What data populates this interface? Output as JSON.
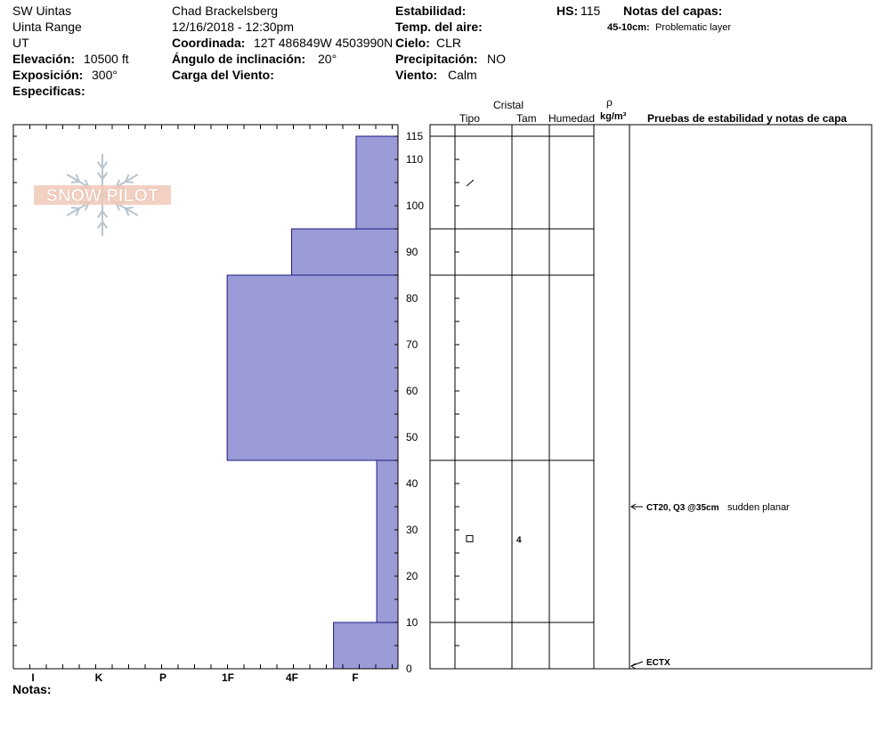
{
  "header": {
    "location": "SW Uintas",
    "range": "Uinta Range",
    "state": "UT",
    "elevation_label": "Elevación:",
    "elevation_value": "10500 ft",
    "aspect_label": "Exposición:",
    "aspect_value": "300°",
    "specifics_label": "Especificas:",
    "observer": "Chad Brackelsberg",
    "datetime": "12/16/2018 - 12:30pm",
    "coord_label": "Coordinada:",
    "coord_value": "12T 486849W 4503990N",
    "slope_label": "Ángulo de inclinación:",
    "slope_value": "20°",
    "wind_load_label": "Carga del Viento:",
    "stability_label": "Estabilidad:",
    "air_temp_label": "Temp. del aire:",
    "sky_label": "Cielo:",
    "sky_value": "CLR",
    "precip_label": "Precipitación:",
    "precip_value": "NO",
    "wind_label": "Viento:",
    "wind_value": "Calm",
    "hs_label": "HS:",
    "hs_value": "115",
    "layer_notes_title": "Notas del capas:",
    "layer_note_range": "45-10cm:",
    "layer_note_text": "Problematic layer"
  },
  "logo_text": "SNOW PILOT",
  "columns": {
    "crystal": "Cristal",
    "type": "Tipo",
    "size": "Tam",
    "moisture": "Humedad",
    "density_symbol": "ρ",
    "density_unit": "kg/m³",
    "tests": "Pruebas de estabilidad y notas de capa"
  },
  "notes_label": "Notas:",
  "chart_data": {
    "type": "bar",
    "orientation": "horizontal",
    "y_axis": {
      "min": 0,
      "max": 115,
      "labels": [
        0,
        10,
        20,
        30,
        40,
        50,
        60,
        70,
        80,
        90,
        100,
        110,
        115
      ]
    },
    "hardness_categories": [
      "I",
      "K",
      "P",
      "1F",
      "4F",
      "F"
    ],
    "layers": [
      {
        "top": 115,
        "bottom": 95,
        "hardness_index": 0.65
      },
      {
        "top": 95,
        "bottom": 85,
        "hardness_index": 1.65
      },
      {
        "top": 85,
        "bottom": 45,
        "hardness_index": 2.65
      },
      {
        "top": 45,
        "bottom": 10,
        "hardness_index": 0.33
      },
      {
        "top": 10,
        "bottom": 0,
        "hardness_index": 1.0
      }
    ],
    "layer_boundaries": [
      115,
      95,
      85,
      45,
      10
    ],
    "crystals": [
      {
        "depth": 105,
        "symbol": "/",
        "size": ""
      },
      {
        "depth": 28,
        "symbol": "□",
        "size": "4"
      }
    ],
    "tests": [
      {
        "depth": 35,
        "code": "CT20, Q3 @35cm",
        "note": "sudden planar"
      },
      {
        "depth": 0,
        "code": "ECTX",
        "note": ""
      }
    ],
    "bar_color": "#9b9bd7",
    "bar_edge": "#1a1a80"
  }
}
